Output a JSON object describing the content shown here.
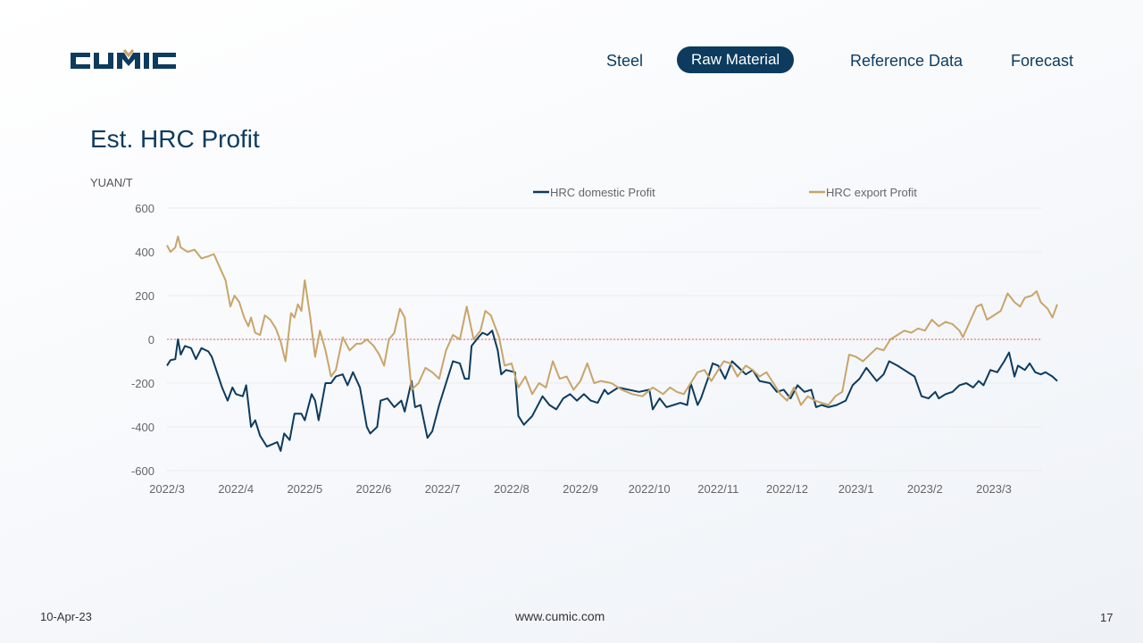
{
  "header": {
    "logo_text": "CUMIC",
    "nav": [
      {
        "label": "Steel",
        "active": false
      },
      {
        "label": "Raw Material",
        "active": true
      },
      {
        "label": "Reference Data",
        "active": false
      },
      {
        "label": "Forecast",
        "active": false
      }
    ]
  },
  "colors": {
    "brand": "#0d3b5e",
    "gold": "#c8a56a",
    "zero_line": "#e0605e"
  },
  "footer": {
    "date": "10-Apr-23",
    "url": "www.cumic.com",
    "page": "17"
  },
  "chart_data": {
    "type": "line",
    "title": "Est. HRC Profit",
    "ylabel": "YUAN/T",
    "ylim": [
      -600,
      600
    ],
    "yticks": [
      600,
      400,
      200,
      0,
      -200,
      -400,
      -600
    ],
    "xticks": [
      "2022/3",
      "2022/4",
      "2022/5",
      "2022/6",
      "2022/7",
      "2022/8",
      "2022/9",
      "2022/10",
      "2022/11",
      "2022/12",
      "2023/1",
      "2023/2",
      "2023/3"
    ],
    "x_month_range": [
      0,
      12.7
    ],
    "zero_line": true,
    "legend_position": "top",
    "series": [
      {
        "name": "HRC domestic Profit",
        "color": "#0d3b5e",
        "points": [
          [
            0,
            -120
          ],
          [
            0.05,
            -95
          ],
          [
            0.12,
            -90
          ],
          [
            0.16,
            0
          ],
          [
            0.2,
            -70
          ],
          [
            0.26,
            -30
          ],
          [
            0.35,
            -40
          ],
          [
            0.42,
            -90
          ],
          [
            0.5,
            -40
          ],
          [
            0.6,
            -55
          ],
          [
            0.65,
            -80
          ],
          [
            0.8,
            -220
          ],
          [
            0.88,
            -280
          ],
          [
            0.95,
            -220
          ],
          [
            1.0,
            -250
          ],
          [
            1.1,
            -260
          ],
          [
            1.15,
            -210
          ],
          [
            1.22,
            -400
          ],
          [
            1.28,
            -370
          ],
          [
            1.35,
            -440
          ],
          [
            1.45,
            -490
          ],
          [
            1.6,
            -470
          ],
          [
            1.65,
            -510
          ],
          [
            1.7,
            -430
          ],
          [
            1.78,
            -460
          ],
          [
            1.85,
            -340
          ],
          [
            1.95,
            -340
          ],
          [
            2.0,
            -370
          ],
          [
            2.1,
            -250
          ],
          [
            2.15,
            -280
          ],
          [
            2.2,
            -370
          ],
          [
            2.3,
            -200
          ],
          [
            2.38,
            -200
          ],
          [
            2.45,
            -170
          ],
          [
            2.55,
            -160
          ],
          [
            2.62,
            -210
          ],
          [
            2.7,
            -150
          ],
          [
            2.8,
            -220
          ],
          [
            2.9,
            -400
          ],
          [
            2.95,
            -430
          ],
          [
            3.05,
            -400
          ],
          [
            3.1,
            -280
          ],
          [
            3.2,
            -270
          ],
          [
            3.3,
            -310
          ],
          [
            3.4,
            -280
          ],
          [
            3.45,
            -330
          ],
          [
            3.55,
            -190
          ],
          [
            3.6,
            -310
          ],
          [
            3.68,
            -300
          ],
          [
            3.78,
            -450
          ],
          [
            3.85,
            -420
          ],
          [
            3.95,
            -300
          ],
          [
            4.05,
            -200
          ],
          [
            4.15,
            -100
          ],
          [
            4.25,
            -110
          ],
          [
            4.32,
            -180
          ],
          [
            4.38,
            -180
          ],
          [
            4.42,
            -30
          ],
          [
            4.52,
            10
          ],
          [
            4.58,
            30
          ],
          [
            4.65,
            20
          ],
          [
            4.72,
            40
          ],
          [
            4.8,
            -50
          ],
          [
            4.85,
            -160
          ],
          [
            4.92,
            -140
          ],
          [
            5.05,
            -150
          ],
          [
            5.1,
            -350
          ],
          [
            5.18,
            -390
          ],
          [
            5.3,
            -350
          ],
          [
            5.45,
            -260
          ],
          [
            5.55,
            -300
          ],
          [
            5.65,
            -320
          ],
          [
            5.75,
            -270
          ],
          [
            5.85,
            -250
          ],
          [
            5.95,
            -280
          ],
          [
            6.05,
            -250
          ],
          [
            6.15,
            -280
          ],
          [
            6.25,
            -290
          ],
          [
            6.35,
            -230
          ],
          [
            6.4,
            -250
          ],
          [
            6.55,
            -220
          ],
          [
            6.7,
            -230
          ],
          [
            6.85,
            -240
          ],
          [
            7.0,
            -230
          ],
          [
            7.05,
            -320
          ],
          [
            7.15,
            -270
          ],
          [
            7.25,
            -310
          ],
          [
            7.35,
            -300
          ],
          [
            7.45,
            -290
          ],
          [
            7.55,
            -300
          ],
          [
            7.6,
            -200
          ],
          [
            7.7,
            -300
          ],
          [
            7.75,
            -270
          ],
          [
            7.85,
            -180
          ],
          [
            7.92,
            -110
          ],
          [
            8.0,
            -120
          ],
          [
            8.1,
            -180
          ],
          [
            8.2,
            -100
          ],
          [
            8.3,
            -130
          ],
          [
            8.4,
            -160
          ],
          [
            8.5,
            -140
          ],
          [
            8.6,
            -190
          ],
          [
            8.75,
            -200
          ],
          [
            8.85,
            -240
          ],
          [
            8.95,
            -230
          ],
          [
            9.05,
            -270
          ],
          [
            9.15,
            -210
          ],
          [
            9.25,
            -240
          ],
          [
            9.35,
            -230
          ],
          [
            9.42,
            -310
          ],
          [
            9.5,
            -300
          ],
          [
            9.6,
            -310
          ],
          [
            9.72,
            -300
          ],
          [
            9.85,
            -280
          ],
          [
            9.95,
            -210
          ],
          [
            10.05,
            -180
          ],
          [
            10.15,
            -130
          ],
          [
            10.3,
            -190
          ],
          [
            10.4,
            -160
          ],
          [
            10.48,
            -100
          ],
          [
            10.6,
            -120
          ],
          [
            10.7,
            -140
          ],
          [
            10.85,
            -170
          ],
          [
            10.95,
            -260
          ],
          [
            11.05,
            -270
          ],
          [
            11.15,
            -240
          ],
          [
            11.2,
            -270
          ],
          [
            11.3,
            -250
          ],
          [
            11.4,
            -240
          ],
          [
            11.5,
            -210
          ],
          [
            11.6,
            -200
          ],
          [
            11.7,
            -220
          ],
          [
            11.78,
            -190
          ],
          [
            11.85,
            -210
          ],
          [
            11.95,
            -140
          ],
          [
            12.05,
            -150
          ],
          [
            12.15,
            -100
          ],
          [
            12.22,
            -60
          ],
          [
            12.3,
            -170
          ],
          [
            12.35,
            -120
          ],
          [
            12.45,
            -140
          ],
          [
            12.52,
            -110
          ],
          [
            12.6,
            -150
          ],
          [
            12.68,
            -160
          ],
          [
            12.75,
            -150
          ],
          [
            12.85,
            -170
          ],
          [
            12.92,
            -190
          ]
        ]
      },
      {
        "name": "HRC export Profit",
        "color": "#c8a56a",
        "points": [
          [
            0,
            430
          ],
          [
            0.05,
            400
          ],
          [
            0.12,
            420
          ],
          [
            0.16,
            470
          ],
          [
            0.2,
            420
          ],
          [
            0.3,
            400
          ],
          [
            0.4,
            410
          ],
          [
            0.5,
            370
          ],
          [
            0.6,
            380
          ],
          [
            0.68,
            390
          ],
          [
            0.75,
            340
          ],
          [
            0.85,
            270
          ],
          [
            0.92,
            150
          ],
          [
            0.98,
            200
          ],
          [
            1.05,
            170
          ],
          [
            1.12,
            100
          ],
          [
            1.18,
            60
          ],
          [
            1.22,
            100
          ],
          [
            1.28,
            30
          ],
          [
            1.35,
            20
          ],
          [
            1.42,
            110
          ],
          [
            1.5,
            90
          ],
          [
            1.58,
            50
          ],
          [
            1.65,
            -10
          ],
          [
            1.72,
            -100
          ],
          [
            1.8,
            120
          ],
          [
            1.85,
            100
          ],
          [
            1.9,
            160
          ],
          [
            1.95,
            130
          ],
          [
            2.0,
            270
          ],
          [
            2.08,
            100
          ],
          [
            2.15,
            -80
          ],
          [
            2.22,
            40
          ],
          [
            2.3,
            -50
          ],
          [
            2.38,
            -170
          ],
          [
            2.45,
            -140
          ],
          [
            2.55,
            10
          ],
          [
            2.65,
            -50
          ],
          [
            2.75,
            -20
          ],
          [
            2.82,
            -20
          ],
          [
            2.9,
            0
          ],
          [
            3.0,
            -30
          ],
          [
            3.08,
            -70
          ],
          [
            3.15,
            -120
          ],
          [
            3.22,
            0
          ],
          [
            3.3,
            30
          ],
          [
            3.38,
            140
          ],
          [
            3.45,
            100
          ],
          [
            3.55,
            -230
          ],
          [
            3.65,
            -200
          ],
          [
            3.75,
            -130
          ],
          [
            3.85,
            -150
          ],
          [
            3.95,
            -180
          ],
          [
            4.05,
            -50
          ],
          [
            4.15,
            20
          ],
          [
            4.25,
            0
          ],
          [
            4.35,
            150
          ],
          [
            4.45,
            0
          ],
          [
            4.55,
            40
          ],
          [
            4.62,
            130
          ],
          [
            4.7,
            110
          ],
          [
            4.82,
            10
          ],
          [
            4.9,
            -120
          ],
          [
            5.0,
            -110
          ],
          [
            5.1,
            -220
          ],
          [
            5.2,
            -170
          ],
          [
            5.3,
            -250
          ],
          [
            5.4,
            -200
          ],
          [
            5.5,
            -220
          ],
          [
            5.6,
            -100
          ],
          [
            5.7,
            -180
          ],
          [
            5.8,
            -170
          ],
          [
            5.9,
            -230
          ],
          [
            6.0,
            -190
          ],
          [
            6.1,
            -110
          ],
          [
            6.2,
            -200
          ],
          [
            6.3,
            -190
          ],
          [
            6.45,
            -200
          ],
          [
            6.6,
            -230
          ],
          [
            6.75,
            -250
          ],
          [
            6.9,
            -260
          ],
          [
            7.05,
            -220
          ],
          [
            7.2,
            -250
          ],
          [
            7.3,
            -220
          ],
          [
            7.4,
            -240
          ],
          [
            7.5,
            -250
          ],
          [
            7.6,
            -200
          ],
          [
            7.7,
            -150
          ],
          [
            7.8,
            -140
          ],
          [
            7.9,
            -190
          ],
          [
            8.0,
            -140
          ],
          [
            8.08,
            -100
          ],
          [
            8.18,
            -110
          ],
          [
            8.28,
            -170
          ],
          [
            8.4,
            -120
          ],
          [
            8.5,
            -140
          ],
          [
            8.6,
            -170
          ],
          [
            8.7,
            -150
          ],
          [
            8.8,
            -200
          ],
          [
            8.9,
            -250
          ],
          [
            9.0,
            -280
          ],
          [
            9.1,
            -220
          ],
          [
            9.2,
            -300
          ],
          [
            9.3,
            -260
          ],
          [
            9.4,
            -280
          ],
          [
            9.5,
            -290
          ],
          [
            9.6,
            -300
          ],
          [
            9.7,
            -260
          ],
          [
            9.8,
            -240
          ],
          [
            9.9,
            -70
          ],
          [
            10.0,
            -80
          ],
          [
            10.1,
            -100
          ],
          [
            10.2,
            -70
          ],
          [
            10.3,
            -40
          ],
          [
            10.4,
            -50
          ],
          [
            10.5,
            0
          ],
          [
            10.6,
            20
          ],
          [
            10.7,
            40
          ],
          [
            10.8,
            30
          ],
          [
            10.9,
            50
          ],
          [
            11.0,
            40
          ],
          [
            11.1,
            90
          ],
          [
            11.2,
            60
          ],
          [
            11.3,
            80
          ],
          [
            11.4,
            70
          ],
          [
            11.5,
            40
          ],
          [
            11.55,
            10
          ],
          [
            11.65,
            80
          ],
          [
            11.75,
            150
          ],
          [
            11.82,
            160
          ],
          [
            11.9,
            90
          ],
          [
            12.0,
            110
          ],
          [
            12.1,
            130
          ],
          [
            12.2,
            210
          ],
          [
            12.3,
            170
          ],
          [
            12.38,
            150
          ],
          [
            12.45,
            190
          ],
          [
            12.55,
            200
          ],
          [
            12.62,
            220
          ],
          [
            12.68,
            170
          ],
          [
            12.78,
            140
          ],
          [
            12.85,
            100
          ],
          [
            12.92,
            160
          ]
        ]
      }
    ]
  }
}
